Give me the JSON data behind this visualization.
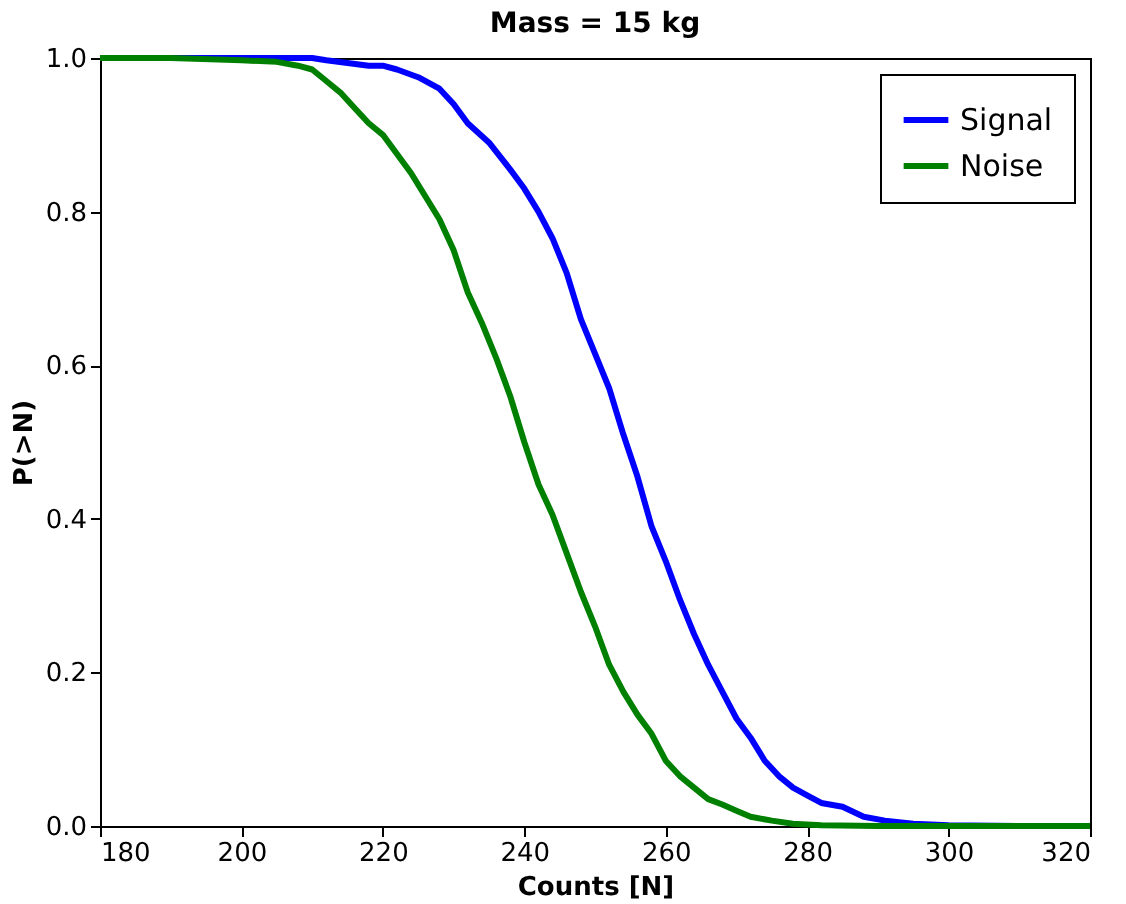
{
  "chart_data": {
    "type": "line",
    "title": "Mass = 15 kg",
    "xlabel": "Counts [N]",
    "ylabel": "P(>N)",
    "xlim": [
      180,
      320
    ],
    "ylim": [
      0,
      1.0
    ],
    "xticks": [
      180,
      200,
      220,
      240,
      260,
      280,
      300,
      320
    ],
    "yticks": [
      {
        "value": 0,
        "label": "0.0"
      },
      0.2,
      0.4,
      0.6,
      0.8,
      {
        "value": 1,
        "label": "1.0"
      }
    ],
    "grid": false,
    "legend": "top right",
    "marker": "none",
    "line_style": "solid",
    "series": [
      {
        "name": "Signal",
        "color": "#0000ff",
        "x": [
          180,
          195,
          210,
          212,
          218,
          220,
          222,
          225,
          228,
          230,
          232,
          235,
          238,
          240,
          242,
          244,
          246,
          248,
          250,
          252,
          254,
          256,
          258,
          260,
          262,
          264,
          266,
          268,
          270,
          272,
          274,
          276,
          278,
          280,
          282,
          285,
          288,
          291,
          295,
          300,
          310,
          320
        ],
        "values": [
          1.0,
          1.0,
          1.0,
          0.997,
          0.99,
          0.99,
          0.985,
          0.975,
          0.96,
          0.94,
          0.915,
          0.89,
          0.855,
          0.83,
          0.8,
          0.765,
          0.72,
          0.66,
          0.615,
          0.57,
          0.51,
          0.455,
          0.39,
          0.345,
          0.295,
          0.25,
          0.21,
          0.175,
          0.14,
          0.115,
          0.085,
          0.065,
          0.05,
          0.04,
          0.03,
          0.025,
          0.012,
          0.007,
          0.003,
          0.001,
          0,
          0
        ]
      },
      {
        "name": "Noise",
        "color": "#008000",
        "x": [
          180,
          190,
          200,
          205,
          208,
          210,
          212,
          214,
          216,
          218,
          220,
          222,
          224,
          226,
          228,
          230,
          232,
          234,
          236,
          238,
          240,
          242,
          244,
          246,
          248,
          250,
          252,
          254,
          256,
          258,
          260,
          262,
          264,
          266,
          268,
          270,
          272,
          275,
          278,
          282,
          290,
          320
        ],
        "values": [
          1.0,
          1.0,
          0.997,
          0.995,
          0.99,
          0.985,
          0.97,
          0.955,
          0.935,
          0.915,
          0.9,
          0.875,
          0.85,
          0.82,
          0.79,
          0.75,
          0.695,
          0.655,
          0.61,
          0.56,
          0.5,
          0.445,
          0.405,
          0.355,
          0.305,
          0.26,
          0.21,
          0.175,
          0.145,
          0.12,
          0.085,
          0.065,
          0.05,
          0.035,
          0.028,
          0.02,
          0.012,
          0.007,
          0.003,
          0.001,
          0,
          0
        ]
      }
    ]
  }
}
